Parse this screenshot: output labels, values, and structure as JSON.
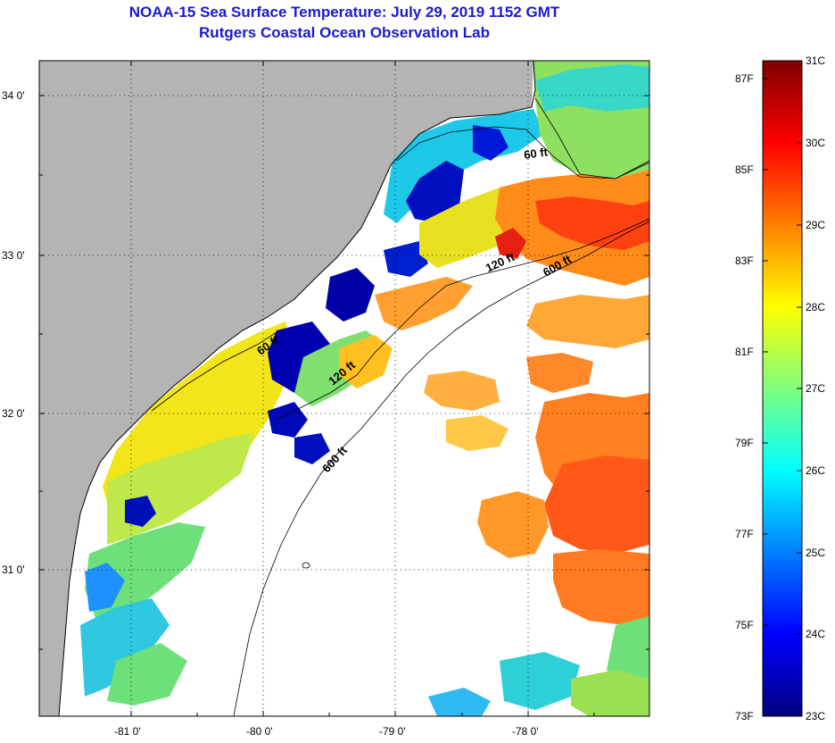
{
  "title": {
    "line1": "NOAA-15 Sea Surface Temperature:  July 29, 2019 1152 GMT",
    "line2": "Rutgers Coastal Ocean Observation Lab"
  },
  "map": {
    "lat_labels": [
      "34 0'",
      "33 0'",
      "32 0'",
      "31 0'"
    ],
    "lon_labels": [
      "-81 0'",
      "-80 0'",
      "-79 0'",
      "-78 0'"
    ],
    "depth_contours": [
      "60 ft",
      "120 ft",
      "600 ft"
    ],
    "land_color": "#b4b4b4",
    "no_data_color": "#ffffff",
    "coastline_color": "#000000"
  },
  "colorbar": {
    "fahrenheit_labels": [
      "87F",
      "85F",
      "83F",
      "81F",
      "79F",
      "77F",
      "75F",
      "73F"
    ],
    "celsius_labels": [
      "31C",
      "30C",
      "29C",
      "28C",
      "27C",
      "26C",
      "25C",
      "24C",
      "23C"
    ],
    "range_celsius": [
      23,
      31
    ],
    "colormap": [
      "#00007f",
      "#0000ff",
      "#007fff",
      "#00ffff",
      "#7fff7f",
      "#ffff00",
      "#ff7f00",
      "#ff0000",
      "#7f0000"
    ]
  }
}
